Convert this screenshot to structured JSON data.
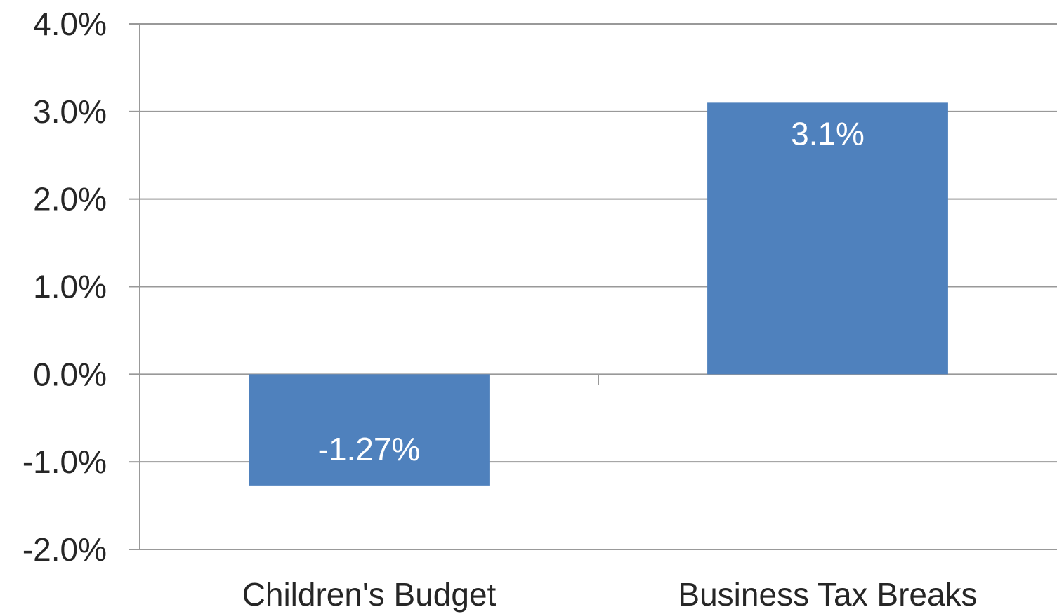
{
  "chart_data": {
    "type": "bar",
    "categories": [
      "Children's Budget",
      "Business Tax Breaks"
    ],
    "values": [
      -1.27,
      3.1
    ],
    "data_labels": [
      "-1.27%",
      "3.1%"
    ],
    "ylim": [
      -2.0,
      4.0
    ],
    "yticks": [
      -2.0,
      -1.0,
      0.0,
      1.0,
      2.0,
      3.0,
      4.0
    ],
    "ytick_labels": [
      "-2.0%",
      "-1.0%",
      "0.0%",
      "1.0%",
      "2.0%",
      "3.0%",
      "4.0%"
    ],
    "grid": true,
    "bar_color": "#4F81BD",
    "grid_color": "#999999"
  }
}
